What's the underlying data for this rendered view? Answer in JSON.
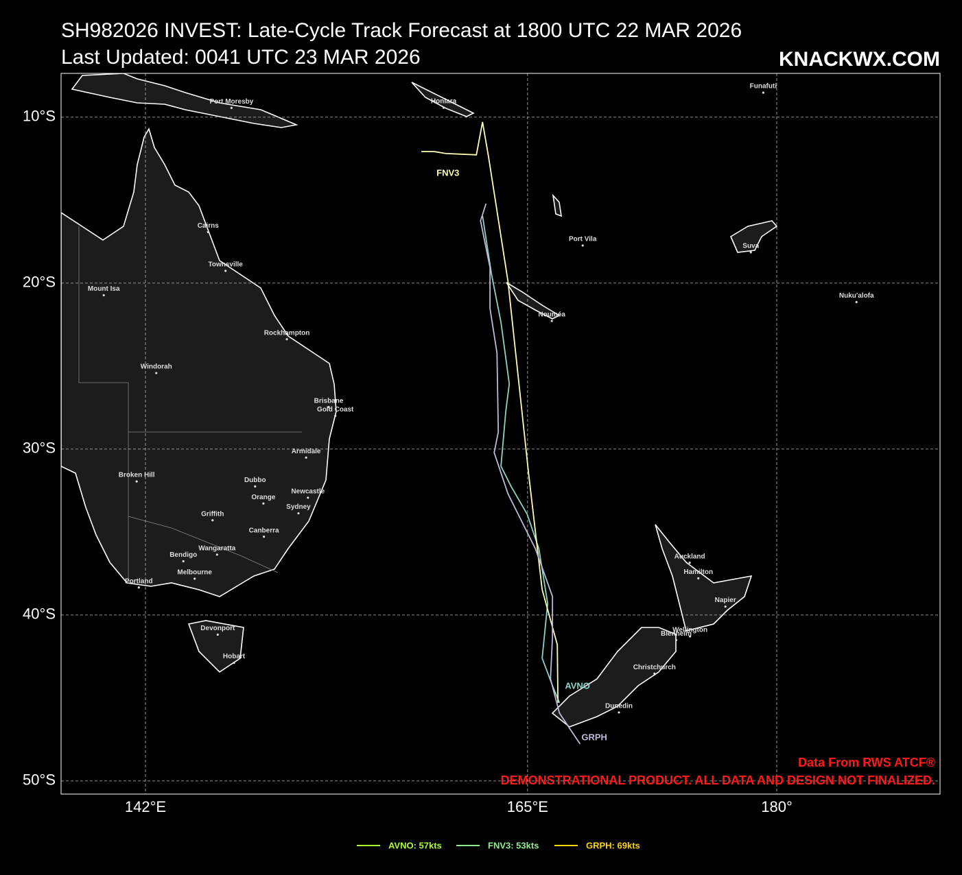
{
  "header": {
    "title": "SH982026 INVEST: Late-Cycle Track Forecast at 1800 UTC 22 MAR 2026",
    "subtitle": "Last Updated: 0041 UTC 23 MAR 2026",
    "brand": "KNACKWX.COM"
  },
  "map": {
    "xlim": [
      136.92,
      189.83
    ],
    "ylim": [
      -50.79,
      -7.36
    ],
    "xticks": [
      {
        "value": 142,
        "label": "142°E"
      },
      {
        "value": 165,
        "label": "165°E"
      },
      {
        "value": 180,
        "label": "180°"
      }
    ],
    "yticks": [
      {
        "value": -10,
        "label": "10°S"
      },
      {
        "value": -20,
        "label": "20°S"
      },
      {
        "value": -30,
        "label": "30°S"
      },
      {
        "value": -40,
        "label": "40°S"
      },
      {
        "value": -50,
        "label": "50°S"
      }
    ],
    "grid": true,
    "tracks": [
      {
        "name": "AVNO",
        "color": "#8dd3c7",
        "lon": [
          162.29,
          162.83,
          163.4,
          163.9,
          163.69,
          163.4,
          164.02,
          164.98,
          165.68,
          166.21,
          165.88,
          166.5,
          166.92
        ],
        "lat": [
          -15.95,
          -19.46,
          -22.36,
          -26.07,
          -27.73,
          -31.03,
          -32.27,
          -33.93,
          -36.0,
          -39.3,
          -42.6,
          -44.26,
          -45.29
        ]
      },
      {
        "name": "FNV3",
        "color": "#ffffb3",
        "lon": [
          158.61,
          159.36,
          160.1,
          161.92,
          162.29,
          162.66,
          163.82,
          165.06,
          165.88,
          166.79,
          166.83
        ],
        "lat": [
          -12.07,
          -12.07,
          -12.19,
          -12.27,
          -10.29,
          -12.44,
          -19.88,
          -31.45,
          -38.47,
          -41.78,
          -45.29
        ]
      },
      {
        "name": "GRPH",
        "color": "#bebada",
        "lon": [
          162.5,
          162.17,
          162.74,
          162.74,
          163.16,
          163.24,
          162.99,
          163.82,
          165.47,
          166.5,
          166.5,
          166.38,
          166.92,
          168.16
        ],
        "lat": [
          -15.21,
          -16.24,
          -19.05,
          -21.53,
          -24.21,
          -28.97,
          -30.21,
          -32.69,
          -36.0,
          -38.88,
          -41.36,
          -43.84,
          -45.91,
          -47.77
        ]
      }
    ],
    "cities": [
      {
        "name": "Port Moresby",
        "lon": 147.18,
        "lat": -9.44
      },
      {
        "name": "Honiara",
        "lon": 159.95,
        "lat": -9.43
      },
      {
        "name": "Funafuti",
        "lon": 179.19,
        "lat": -8.52
      },
      {
        "name": "Cairns",
        "lon": 145.77,
        "lat": -16.92
      },
      {
        "name": "Townsville",
        "lon": 146.82,
        "lat": -19.26
      },
      {
        "name": "Mount Isa",
        "lon": 139.49,
        "lat": -20.73
      },
      {
        "name": "Port Vila",
        "lon": 168.32,
        "lat": -17.73
      },
      {
        "name": "Suva",
        "lon": 178.44,
        "lat": -18.14
      },
      {
        "name": "Nouméa",
        "lon": 166.46,
        "lat": -22.28
      },
      {
        "name": "Nuku'alofa",
        "lon": 184.8,
        "lat": -21.14
      },
      {
        "name": "Rockhampton",
        "lon": 150.51,
        "lat": -23.38
      },
      {
        "name": "Windorah",
        "lon": 142.65,
        "lat": -25.42
      },
      {
        "name": "Brisbane",
        "lon": 153.03,
        "lat": -27.47
      },
      {
        "name": "Gold Coast",
        "lon": 153.43,
        "lat": -28.0
      },
      {
        "name": "Armidale",
        "lon": 151.67,
        "lat": -30.51
      },
      {
        "name": "Broken Hill",
        "lon": 141.47,
        "lat": -31.95
      },
      {
        "name": "Dubbo",
        "lon": 148.6,
        "lat": -32.25
      },
      {
        "name": "Orange",
        "lon": 149.1,
        "lat": -33.28
      },
      {
        "name": "Newcastle",
        "lon": 151.78,
        "lat": -32.93
      },
      {
        "name": "Sydney",
        "lon": 151.21,
        "lat": -33.87
      },
      {
        "name": "Griffith",
        "lon": 146.04,
        "lat": -34.29
      },
      {
        "name": "Canberra",
        "lon": 149.13,
        "lat": -35.28
      },
      {
        "name": "Wangaratta",
        "lon": 146.31,
        "lat": -36.36
      },
      {
        "name": "Bendigo",
        "lon": 144.28,
        "lat": -36.76
      },
      {
        "name": "Melbourne",
        "lon": 144.96,
        "lat": -37.81
      },
      {
        "name": "Portland",
        "lon": 141.6,
        "lat": -38.34
      },
      {
        "name": "Devonport",
        "lon": 146.35,
        "lat": -41.18
      },
      {
        "name": "Hobart",
        "lon": 147.33,
        "lat": -42.88
      },
      {
        "name": "Auckland",
        "lon": 174.76,
        "lat": -36.85
      },
      {
        "name": "Hamilton",
        "lon": 175.28,
        "lat": -37.79
      },
      {
        "name": "Napier",
        "lon": 176.91,
        "lat": -39.49
      },
      {
        "name": "Wellington",
        "lon": 174.78,
        "lat": -41.29
      },
      {
        "name": "Blenheim",
        "lon": 173.95,
        "lat": -41.51
      },
      {
        "name": "Christchurch",
        "lon": 172.64,
        "lat": -43.53
      },
      {
        "name": "Dunedin",
        "lon": 170.5,
        "lat": -45.87
      }
    ]
  },
  "legend": [
    {
      "label": "AVNO: 57kts",
      "color": "#adff2f"
    },
    {
      "label": "FNV3: 53kts",
      "color": "#90ee90"
    },
    {
      "label": "GRPH: 69kts",
      "color": "#ffd700"
    }
  ],
  "notes": [
    "Data From RWS ATCF®",
    "DEMONSTRATIONAL PRODUCT. ALL DATA AND DESIGN NOT FINALIZED."
  ]
}
